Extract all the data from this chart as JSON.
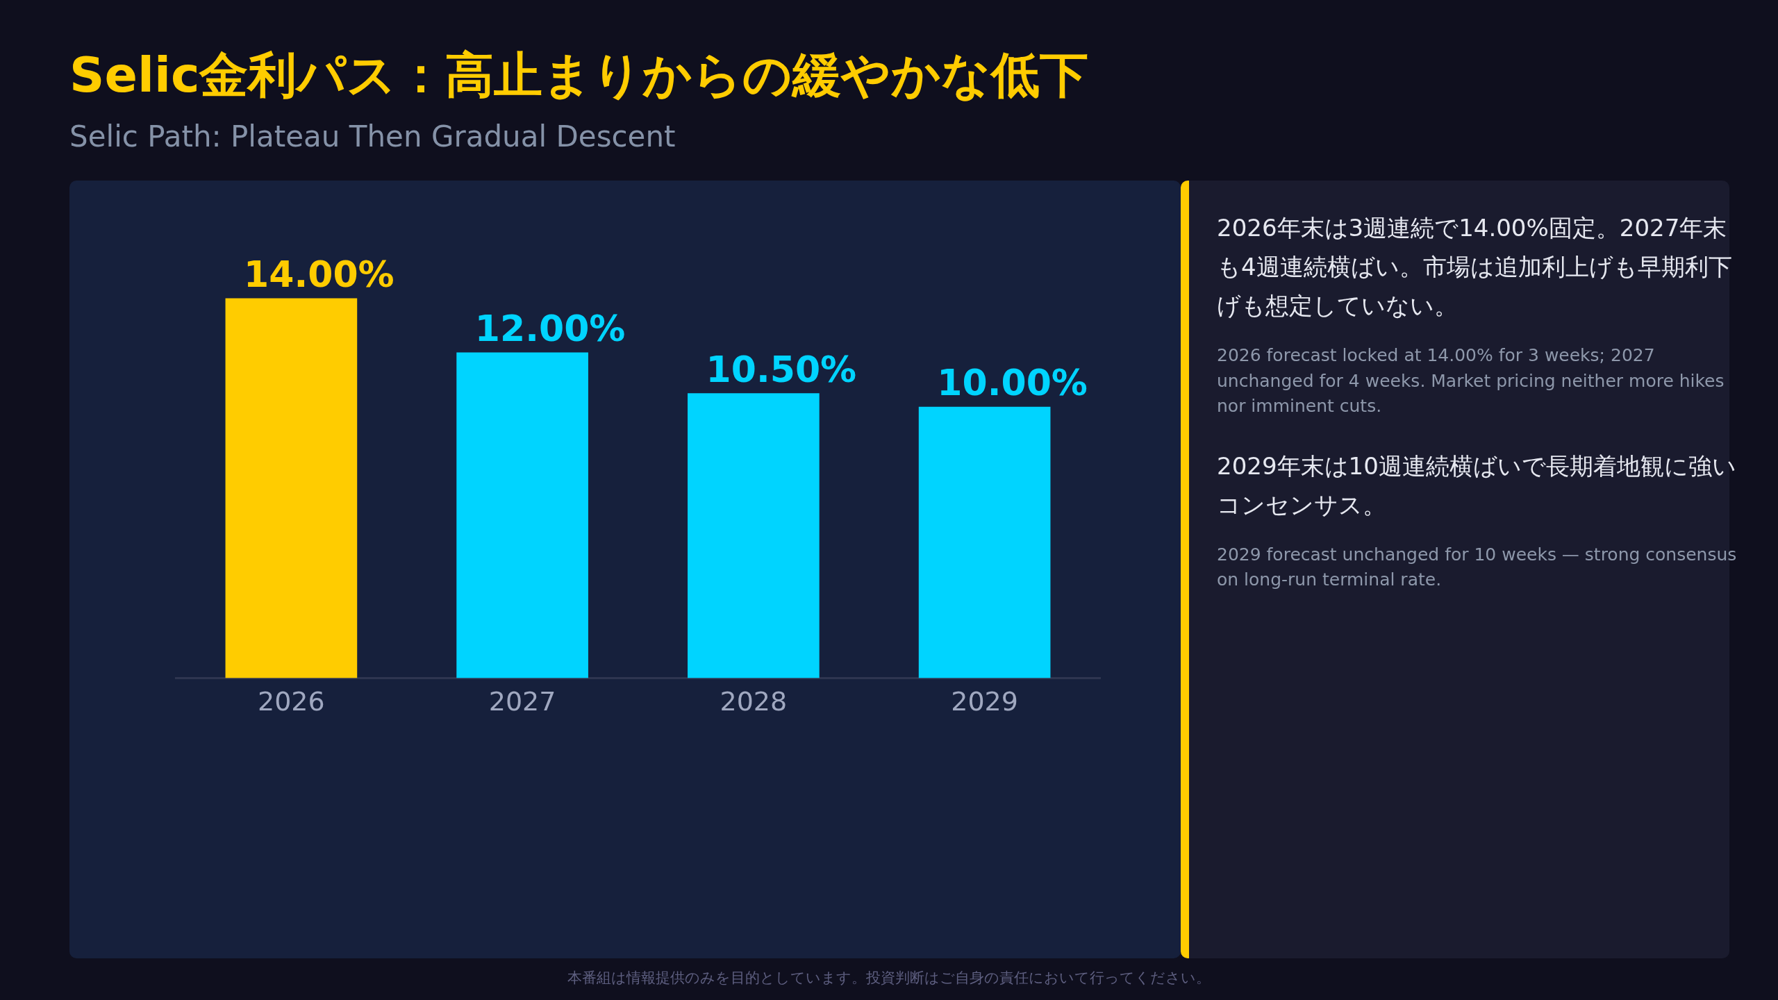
{
  "chart_data": {
    "type": "bar",
    "title": "Selic金利パス：高止まりからの緩やかな低下",
    "subtitle": "Selic Path: Plateau Then Gradual Descent",
    "categories": [
      "2026",
      "2027",
      "2028",
      "2029"
    ],
    "values": [
      14,
      12,
      10.5,
      10
    ],
    "colors": [
      "#ffcc00",
      "#00d4ff",
      "#00d4ff",
      "#00d4ff"
    ],
    "value_labels": [
      "14.00%",
      "12.00%",
      "10.50%",
      "10.00%"
    ],
    "grid": false,
    "legend": false,
    "tick_labels": "x",
    "annotations": [
      "2026年末は3週連続で14.00%固定。2027年末も4週連続横ばい。市場は追加利上げも早期利下げも想定していない。",
      "2026 forecast locked at 14.00% for 3 weeks; 2027 unchanged for 4 weeks. Market pricing neither more hikes nor imminent cuts.",
      "2029年末は10週連続横ばいで長期着地観に強いコンセンサス。",
      "2029 forecast unchanged for 10 weeks — strong consensus on long-run terminal rate.",
      "本番組は情報提供のみを目的としています。投資判断はご自身の責任において行ってください。"
    ]
  }
}
